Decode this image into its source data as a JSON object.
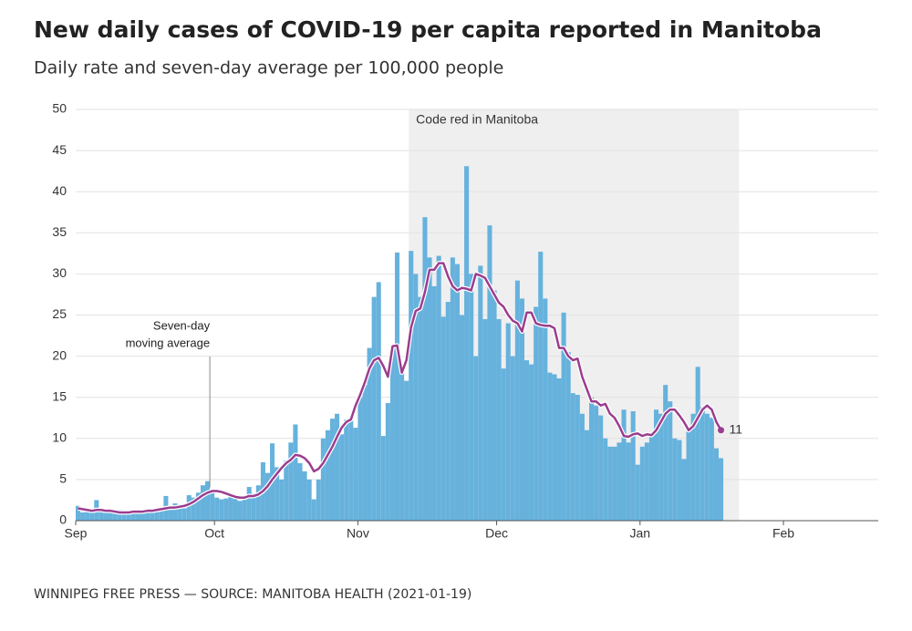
{
  "chart_data": {
    "type": "bar",
    "title": "New daily cases of COVID-19 per capita reported in Manitoba",
    "subtitle": "Daily rate and seven-day average per 100,000 people",
    "source": "WINNIPEG FREE PRESS — SOURCE: MANITOBA HEALTH (2021-01-19)",
    "xlim": [
      0,
      173.5
    ],
    "xticks": [
      {
        "value": 0,
        "label": "Sep"
      },
      {
        "value": 30,
        "label": "Oct"
      },
      {
        "value": 61,
        "label": "Nov"
      },
      {
        "value": 91,
        "label": "Dec"
      },
      {
        "value": 122,
        "label": "Jan"
      },
      {
        "value": 153,
        "label": "Feb"
      }
    ],
    "ylim": [
      0,
      50
    ],
    "yticks": [
      0,
      5,
      10,
      15,
      20,
      25,
      30,
      35,
      40,
      45,
      50
    ],
    "grid": true,
    "shade": {
      "x": [
        72,
        143.4
      ],
      "label": "Code red in Manitoba"
    },
    "annotation": {
      "lines": [
        "Seven-day",
        "moving average"
      ],
      "x": 29
    },
    "series": [
      {
        "color": "#66b2dd",
        "values": [
          1.8,
          1.0,
          1.2,
          1.0,
          2.5,
          1.3,
          1.0,
          1.2,
          1.0,
          1.3,
          1.0,
          0.9,
          1.0,
          1.1,
          1.3,
          1.2,
          1.4,
          1.5,
          1.2,
          3.0,
          1.4,
          2.1,
          1.9,
          1.5,
          3.1,
          2.8,
          3.4,
          4.3,
          4.8,
          3.6,
          2.8,
          2.6,
          2.7,
          3.3,
          3.0,
          2.4,
          3.0,
          4.1,
          3.3,
          4.3,
          7.1,
          5.8,
          9.4,
          6.5,
          5.0,
          7.3,
          9.5,
          11.7,
          7.0,
          6.0,
          5.0,
          2.6,
          5.0,
          10.0,
          11.0,
          12.4,
          13.0,
          10.5,
          12.3,
          12.5,
          11.3,
          15.0,
          16.5,
          21.0,
          27.2,
          29.0,
          10.3,
          14.3,
          21.0,
          32.6,
          19.0,
          17.0,
          32.8,
          30.0,
          27.2,
          36.9,
          32.0,
          28.5,
          32.2,
          24.8,
          26.6,
          32.0,
          31.2,
          25.0,
          43.1,
          30.0,
          20.0,
          31.0,
          24.5,
          35.9,
          28.0,
          24.5,
          18.5,
          24.0,
          20.0,
          29.2,
          27.0,
          19.5,
          19.0,
          26.0,
          32.7,
          27.0,
          18.0,
          17.8,
          17.3,
          25.3,
          20.5,
          15.5,
          15.3,
          13.0,
          11.0,
          15.0,
          14.0,
          12.8,
          10.0,
          9.0,
          9.0,
          9.5,
          13.5,
          9.5,
          13.3,
          6.8,
          9.0,
          9.5,
          10.5,
          13.5,
          13.0,
          16.5,
          14.5,
          10.0,
          9.8,
          7.5,
          11.0,
          13.0,
          18.7,
          13.8,
          13.0,
          12.5,
          8.8,
          7.6
        ]
      },
      {
        "name": "Seven-day moving average",
        "color": "#9b3d8f",
        "values": [
          1.5,
          1.4,
          1.3,
          1.2,
          1.3,
          1.3,
          1.2,
          1.2,
          1.1,
          1.0,
          1.0,
          1.0,
          1.1,
          1.1,
          1.1,
          1.2,
          1.2,
          1.3,
          1.4,
          1.5,
          1.6,
          1.6,
          1.7,
          1.8,
          2.0,
          2.3,
          2.7,
          3.1,
          3.4,
          3.6,
          3.6,
          3.5,
          3.3,
          3.1,
          2.9,
          2.8,
          2.8,
          3.0,
          3.0,
          3.2,
          3.6,
          4.2,
          5.0,
          5.7,
          6.4,
          7.0,
          7.4,
          8.0,
          7.9,
          7.6,
          7.0,
          6.0,
          6.3,
          7.0,
          8.0,
          9.0,
          10.2,
          11.3,
          12.0,
          12.3,
          14.0,
          15.3,
          16.8,
          18.5,
          19.5,
          19.8,
          18.8,
          17.5,
          21.2,
          21.3,
          18.0,
          19.5,
          23.5,
          25.5,
          25.8,
          27.8,
          30.5,
          30.5,
          31.3,
          31.3,
          29.7,
          28.5,
          28.0,
          28.3,
          28.2,
          28.0,
          30.0,
          29.8,
          29.5,
          28.5,
          27.5,
          26.5,
          26.0,
          25.0,
          24.3,
          24.0,
          23.0,
          25.3,
          25.3,
          24.0,
          23.8,
          23.7,
          23.7,
          23.4,
          21.0,
          21.0,
          20.0,
          19.5,
          19.7,
          17.5,
          16.0,
          14.5,
          14.5,
          14.0,
          14.2,
          13.0,
          12.5,
          11.5,
          10.3,
          10.2,
          10.5,
          10.6,
          10.3,
          10.5,
          10.4,
          11.0,
          12.0,
          13.0,
          13.5,
          13.5,
          12.8,
          12.0,
          11.0,
          11.5,
          12.5,
          13.5,
          14.0,
          13.5,
          12.0,
          11
        ]
      }
    ]
  }
}
